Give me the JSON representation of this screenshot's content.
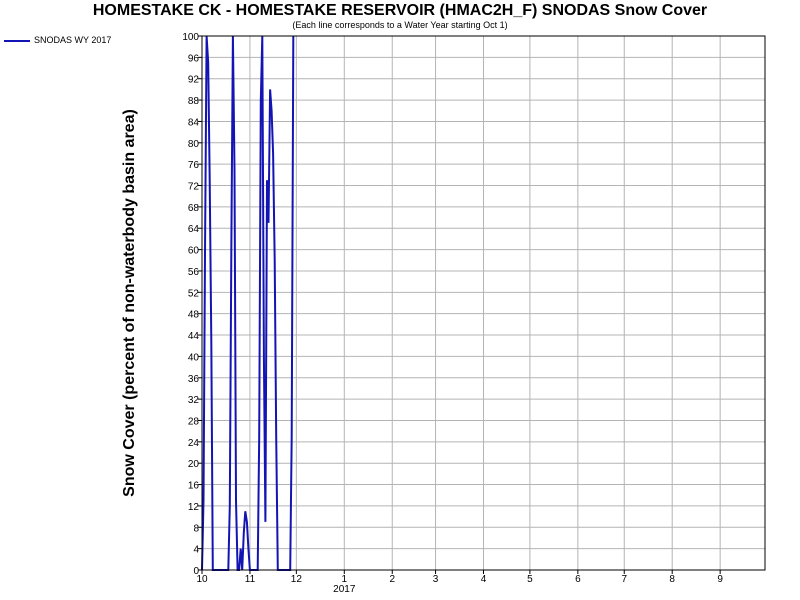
{
  "chart_data": {
    "type": "line",
    "title": "HOMESTAKE CK - HOMESTAKE RESERVOIR (HMAC2H_F) SNODAS Snow Cover",
    "subtitle": "(Each line corresponds to a Water Year starting Oct 1)",
    "ylabel": "Snow Cover (percent of non-waterbody basin area)",
    "xlabel": "",
    "ylim": [
      0,
      100
    ],
    "yticks": [
      0,
      4,
      8,
      12,
      16,
      20,
      24,
      28,
      32,
      36,
      40,
      44,
      48,
      52,
      56,
      60,
      64,
      68,
      72,
      76,
      80,
      84,
      88,
      92,
      96,
      100
    ],
    "xlim": [
      "2016-10-01",
      "2017-09-30"
    ],
    "xticks": [
      {
        "date": "2016-10-01",
        "label": "10"
      },
      {
        "date": "2016-11-01",
        "label": "11"
      },
      {
        "date": "2016-12-01",
        "label": "12"
      },
      {
        "date": "2017-01-01",
        "label": "1"
      },
      {
        "date": "2017-02-01",
        "label": "2"
      },
      {
        "date": "2017-03-01",
        "label": "3"
      },
      {
        "date": "2017-04-01",
        "label": "4"
      },
      {
        "date": "2017-05-01",
        "label": "5"
      },
      {
        "date": "2017-06-01",
        "label": "6"
      },
      {
        "date": "2017-07-01",
        "label": "7"
      },
      {
        "date": "2017-08-01",
        "label": "8"
      },
      {
        "date": "2017-09-01",
        "label": "9"
      }
    ],
    "year_label": "2017",
    "grid": true,
    "legend": "top-left",
    "series": [
      {
        "name": "SNODAS WY 2017",
        "color": "#1414b4",
        "points": [
          [
            "2016-10-01",
            0
          ],
          [
            "2016-10-02",
            13
          ],
          [
            "2016-10-03",
            62
          ],
          [
            "2016-10-04",
            100
          ],
          [
            "2016-10-05",
            95
          ],
          [
            "2016-10-06",
            73
          ],
          [
            "2016-10-07",
            43
          ],
          [
            "2016-10-08",
            0
          ],
          [
            "2016-10-09",
            0
          ],
          [
            "2016-10-10",
            0
          ],
          [
            "2016-10-11",
            0
          ],
          [
            "2016-10-12",
            0
          ],
          [
            "2016-10-13",
            0
          ],
          [
            "2016-10-14",
            0
          ],
          [
            "2016-10-15",
            0
          ],
          [
            "2016-10-16",
            0
          ],
          [
            "2016-10-17",
            0
          ],
          [
            "2016-10-18",
            0
          ],
          [
            "2016-10-19",
            12
          ],
          [
            "2016-10-20",
            62
          ],
          [
            "2016-10-21",
            100
          ],
          [
            "2016-10-22",
            75
          ],
          [
            "2016-10-23",
            13
          ],
          [
            "2016-10-24",
            0
          ],
          [
            "2016-10-25",
            0
          ],
          [
            "2016-10-26",
            4
          ],
          [
            "2016-10-27",
            0
          ],
          [
            "2016-10-28",
            7
          ],
          [
            "2016-10-29",
            11
          ],
          [
            "2016-10-30",
            9
          ],
          [
            "2016-10-31",
            4
          ],
          [
            "2016-11-01",
            0
          ],
          [
            "2016-11-02",
            0
          ],
          [
            "2016-11-03",
            0
          ],
          [
            "2016-11-04",
            0
          ],
          [
            "2016-11-05",
            0
          ],
          [
            "2016-11-06",
            0
          ],
          [
            "2016-11-07",
            25
          ],
          [
            "2016-11-08",
            88
          ],
          [
            "2016-11-09",
            100
          ],
          [
            "2016-11-10",
            40
          ],
          [
            "2016-11-11",
            9
          ],
          [
            "2016-11-12",
            73
          ],
          [
            "2016-11-13",
            65
          ],
          [
            "2016-11-14",
            90
          ],
          [
            "2016-11-15",
            86
          ],
          [
            "2016-11-16",
            78
          ],
          [
            "2016-11-17",
            58
          ],
          [
            "2016-11-18",
            25
          ],
          [
            "2016-11-19",
            0
          ],
          [
            "2016-11-20",
            0
          ],
          [
            "2016-11-21",
            0
          ],
          [
            "2016-11-22",
            0
          ],
          [
            "2016-11-23",
            0
          ],
          [
            "2016-11-24",
            0
          ],
          [
            "2016-11-25",
            0
          ],
          [
            "2016-11-26",
            0
          ],
          [
            "2016-11-27",
            0
          ],
          [
            "2016-11-28",
            25
          ],
          [
            "2016-11-29",
            100
          ]
        ]
      }
    ]
  }
}
